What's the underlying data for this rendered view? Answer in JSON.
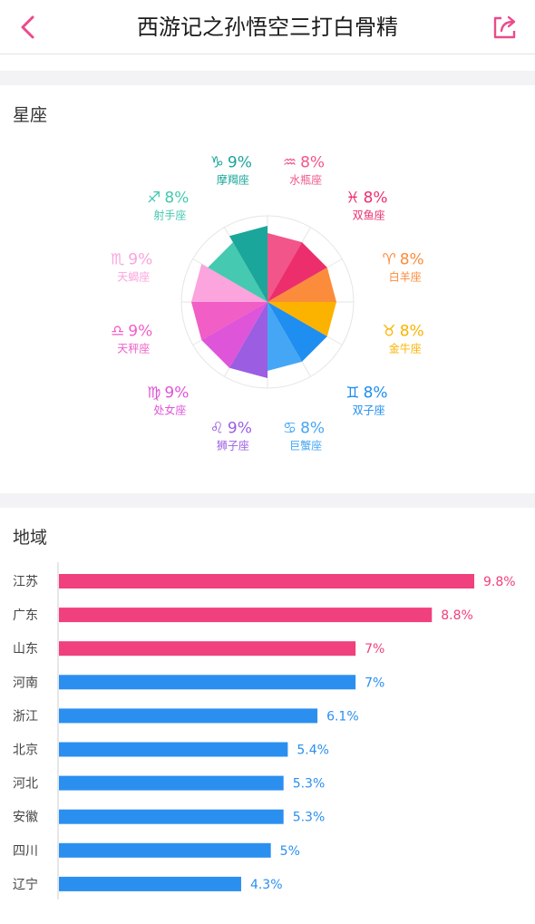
{
  "header": {
    "title": "西游记之孙悟空三打白骨精",
    "back_icon": "chevron-left-icon",
    "share_icon": "share-icon",
    "accent_color": "#ec4a8a"
  },
  "zodiac_section": {
    "title": "星座"
  },
  "region_section": {
    "title": "地域"
  },
  "chart_data": [
    {
      "type": "pie",
      "title": "星座",
      "style": "polar-area (equal angles, radius by value)",
      "slices": [
        {
          "name": "水瓶座",
          "symbol": "♒",
          "value": 8,
          "label": "8%",
          "color": "#f2558a"
        },
        {
          "name": "双鱼座",
          "symbol": "♓",
          "value": 8,
          "label": "8%",
          "color": "#ec2f6c"
        },
        {
          "name": "白羊座",
          "symbol": "♈",
          "value": 8,
          "label": "8%",
          "color": "#fb8c3c"
        },
        {
          "name": "金牛座",
          "symbol": "♉",
          "value": 8,
          "label": "8%",
          "color": "#fcb300"
        },
        {
          "name": "双子座",
          "symbol": "♊",
          "value": 8,
          "label": "8%",
          "color": "#1e8ef0"
        },
        {
          "name": "巨蟹座",
          "symbol": "♋",
          "value": 8,
          "label": "8%",
          "color": "#45a6f5"
        },
        {
          "name": "狮子座",
          "symbol": "♌",
          "value": 9,
          "label": "9%",
          "color": "#9b5de2"
        },
        {
          "name": "处女座",
          "symbol": "♍",
          "value": 9,
          "label": "9%",
          "color": "#df55d9"
        },
        {
          "name": "天秤座",
          "symbol": "♎",
          "value": 9,
          "label": "9%",
          "color": "#f05ec6"
        },
        {
          "name": "天蝎座",
          "symbol": "♏",
          "value": 9,
          "label": "9%",
          "color": "#fba4dd"
        },
        {
          "name": "射手座",
          "symbol": "♐",
          "value": 8,
          "label": "8%",
          "color": "#45c9b0"
        },
        {
          "name": "摩羯座",
          "symbol": "♑",
          "value": 9,
          "label": "9%",
          "color": "#1aa69a"
        }
      ]
    },
    {
      "type": "bar",
      "orientation": "horizontal",
      "title": "地域",
      "categories": [
        "江苏",
        "广东",
        "山东",
        "河南",
        "浙江",
        "北京",
        "河北",
        "安徽",
        "四川",
        "辽宁"
      ],
      "values": [
        9.8,
        8.8,
        7,
        7,
        6.1,
        5.4,
        5.3,
        5.3,
        5,
        4.3
      ],
      "labels": [
        "9.8%",
        "8.8%",
        "7%",
        "7%",
        "6.1%",
        "5.4%",
        "5.3%",
        "5.3%",
        "5%",
        "4.3%"
      ],
      "colors": [
        "#f0407d",
        "#f0407d",
        "#f0407d",
        "#2b8ff0",
        "#2b8ff0",
        "#2b8ff0",
        "#2b8ff0",
        "#2b8ff0",
        "#2b8ff0",
        "#2b8ff0"
      ],
      "xlim": [
        0,
        9.8
      ]
    }
  ]
}
